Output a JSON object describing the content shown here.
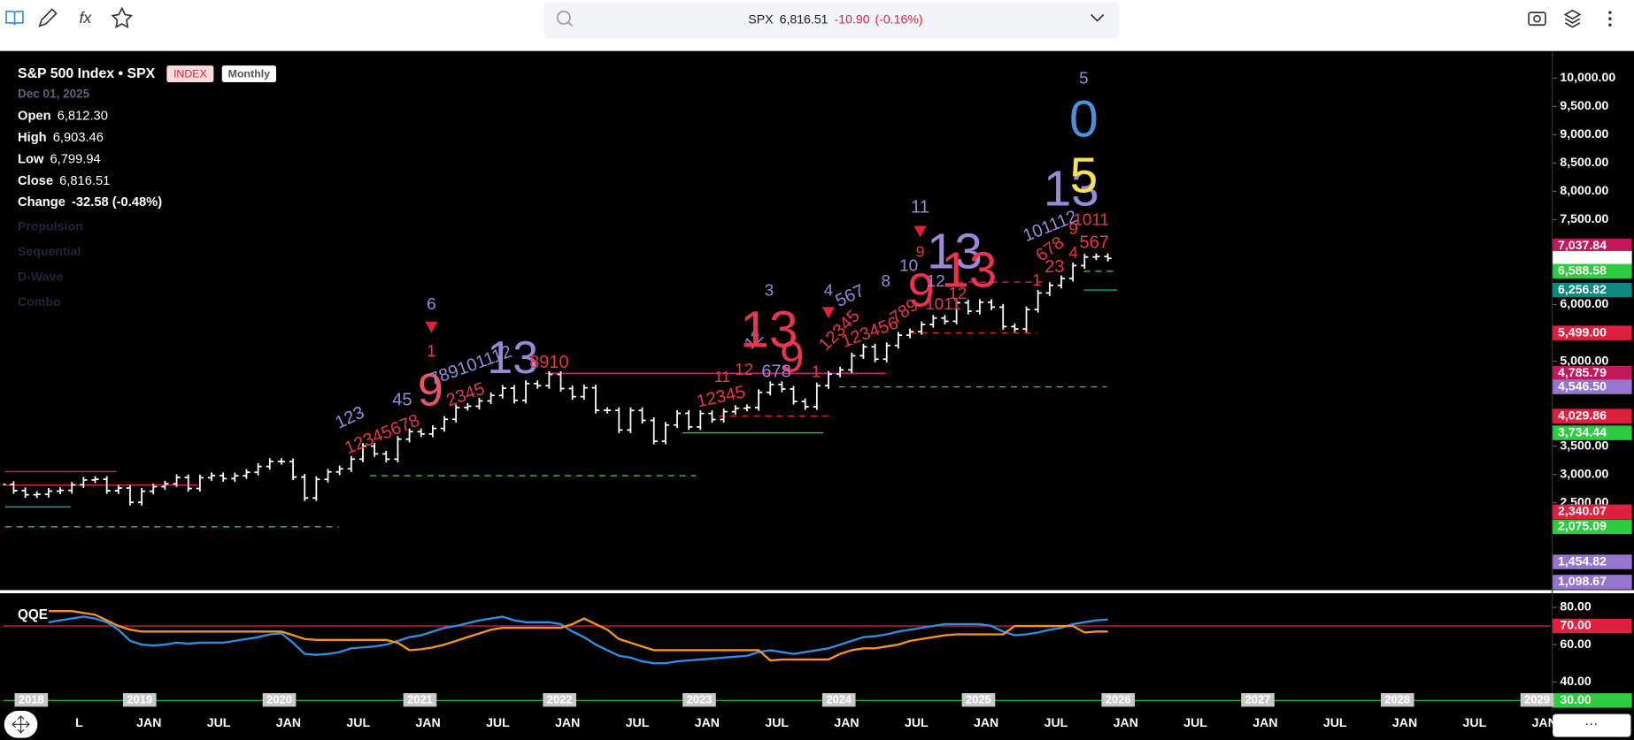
{
  "toolbar": {
    "symbol": "SPX",
    "price": "6,816.51",
    "change": "-10.90",
    "change_pct": "(-0.16%)"
  },
  "legend": {
    "title": "S&P 500 Index • SPX",
    "badges": [
      "INDEX",
      "Monthly"
    ],
    "date": "Dec 01, 2025",
    "rows": [
      [
        "Open",
        "6,812.30"
      ],
      [
        "High",
        "6,903.46"
      ],
      [
        "Low",
        "6,799.94"
      ],
      [
        "Close",
        "6,816.51"
      ],
      [
        "Change",
        "-32.58 (-0.48%)"
      ]
    ],
    "studies": [
      "Propulsion",
      "Sequential",
      "D-Wave",
      "Combo"
    ]
  },
  "time_axis": {
    "month_labels": [
      "L",
      "JAN",
      "JUL",
      "JAN",
      "JUL",
      "JAN",
      "JUL",
      "JAN",
      "JUL",
      "JAN",
      "JUL",
      "JAN",
      "JUL",
      "JAN",
      "JUL",
      "JAN",
      "JUL",
      "JAN",
      "JUL",
      "JAN",
      "JUL",
      "JAN"
    ],
    "year_labels": [
      "2018",
      "2019",
      "2020",
      "2021",
      "2022",
      "2023",
      "2024",
      "2025",
      "2026",
      "2027",
      "2028",
      "2029"
    ]
  },
  "chart_data": [
    {
      "type": "ohlc",
      "series": [
        {
          "color": "#ffffff",
          "values": [
            2824,
            2714,
            2641,
            2648,
            2705,
            2718,
            2816,
            2902,
            2914,
            2712,
            2760,
            2507,
            2704,
            2784,
            2834,
            2946,
            2752,
            2942,
            2980,
            2926,
            2977,
            3038,
            3141,
            3231,
            3226,
            2954,
            2585,
            2912,
            3044,
            3100,
            3271,
            3500,
            3363,
            3270,
            3622,
            3756,
            3714,
            3811,
            3973,
            4181,
            4204,
            4298,
            4395,
            4523,
            4308,
            4605,
            4567,
            4766,
            4516,
            4374,
            4530,
            4132,
            4132,
            3785,
            4130,
            3955,
            3586,
            3872,
            4080,
            3840,
            4077,
            3970,
            4109,
            4169,
            4180,
            4450,
            4589,
            4508,
            4288,
            4194,
            4568,
            4770,
            4846,
            5096,
            5254,
            5036,
            5278,
            5460,
            5522,
            5648,
            5762,
            5705,
            6032,
            5882,
            6041,
            5955,
            5612,
            5569,
            5912,
            6205,
            6339,
            6460,
            6688,
            6840,
            6849,
            6816.51
          ]
        }
      ],
      "ylim": [
        975,
        10460
      ],
      "yticks": [
        {
          "value": 10000,
          "label": "10,000.00"
        },
        {
          "value": 9500,
          "label": "9,500.00"
        },
        {
          "value": 9000,
          "label": "9,000.00"
        },
        {
          "value": 8500,
          "label": "8,500.00"
        },
        {
          "value": 8000,
          "label": "8,000.00"
        },
        {
          "value": 7500,
          "label": "7,500.00"
        },
        {
          "value": 6000,
          "label": "6,000.00"
        },
        {
          "value": 5000,
          "label": "5,000.00"
        },
        {
          "value": 3500,
          "label": "3,500.00"
        },
        {
          "value": 3000,
          "label": "3,000.00"
        },
        {
          "value": 2500,
          "label": "2,500.00"
        }
      ],
      "price_tags": [
        {
          "value": 7037.84,
          "label": "7,037.84",
          "color": "#c2185b"
        },
        {
          "value": 6816.51,
          "color": "#ffffff"
        },
        {
          "value": 6588.58,
          "label": "6,588.58",
          "color": "#2ecc40"
        },
        {
          "value": 6256.82,
          "label": "6,256.82",
          "color": "#0e8a80"
        },
        {
          "value": 5499,
          "label": "5,499.00",
          "color": "#e0203f"
        },
        {
          "value": 4785.79,
          "label": "4,785.79",
          "color": "#c2185b"
        },
        {
          "value": 4546.5,
          "label": "4,546.50",
          "color": "#9575cd"
        },
        {
          "value": 4029.86,
          "label": "4,029.86",
          "color": "#e0203f"
        },
        {
          "value": 3734.44,
          "label": "3,734.44",
          "color": "#2ecc40"
        },
        {
          "value": 2340.07,
          "label": "2,340.07",
          "color": "#e0203f"
        },
        {
          "value": 2075.09,
          "label": "2,075.09",
          "color": "#2ecc40"
        },
        {
          "value": 1454.82,
          "label": "1,454.82",
          "color": "#9575cd"
        },
        {
          "value": 1098.67,
          "label": "1,098.67",
          "color": "#9575cd"
        }
      ],
      "levels": [
        {
          "value": 2075.09,
          "color": "#2ecc40",
          "dashed": true
        },
        {
          "value": 2978,
          "color": "#2ecc40",
          "dashed": true
        },
        {
          "value": 2812,
          "color": "#e0203f",
          "dashed": false
        },
        {
          "value": 3050,
          "color": "#e0203f",
          "dashed": false
        },
        {
          "value": 2426,
          "color": "#12a39a",
          "dashed": false
        },
        {
          "value": 4546.5,
          "color": "#2ecc40",
          "dashed": true
        },
        {
          "value": 4785.79,
          "color": "#d81b7a",
          "dashed": false
        },
        {
          "value": 5499,
          "color": "#e0203f",
          "dashed": true
        },
        {
          "value": 6397,
          "color": "#d81b7a",
          "dashed": true
        },
        {
          "value": 6588.58,
          "color": "#2ecc40",
          "dashed": true
        },
        {
          "value": 6256.82,
          "color": "#12a39a",
          "dashed": false
        },
        {
          "value": 4029.86,
          "color": "#e0203f",
          "dashed": true
        },
        {
          "value": 3734.44,
          "color": "#2ecc40",
          "dashed": false
        }
      ],
      "annotations": [
        {
          "text": "6",
          "color": "#9c88d6"
        },
        {
          "text": "1",
          "color": "#e8344e"
        },
        {
          "text": "9",
          "color": "#f0506a"
        },
        {
          "text": "123",
          "color": "#9c88d6"
        },
        {
          "text": "12345678",
          "color": "#e8344e"
        },
        {
          "text": "45",
          "color": "#9c88d6"
        },
        {
          "text": "789101112",
          "color": "#9c88d6"
        },
        {
          "text": "2345",
          "color": "#e8344e"
        },
        {
          "text": "13",
          "color": "#9c88d6"
        },
        {
          "text": "8910",
          "color": "#e8344e"
        },
        {
          "text": "11",
          "color": "#e8344e"
        },
        {
          "text": "12345",
          "color": "#e8344e"
        },
        {
          "text": "12",
          "color": "#e8344e"
        },
        {
          "text": "12",
          "color": "#9c88d6"
        },
        {
          "text": "3",
          "color": "#9c88d6"
        },
        {
          "text": "13",
          "color": "#e8344e"
        },
        {
          "text": "9",
          "color": "#e8344e"
        },
        {
          "text": "678",
          "color": "#9c88d6"
        },
        {
          "text": "1",
          "color": "#e8344e"
        },
        {
          "text": "4",
          "color": "#9c88d6"
        },
        {
          "text": "567",
          "color": "#9c88d6"
        },
        {
          "text": "12345",
          "color": "#e8344e"
        },
        {
          "text": "123456",
          "color": "#e8344e"
        },
        {
          "text": "789",
          "color": "#e8344e"
        },
        {
          "text": "8",
          "color": "#9c88d6"
        },
        {
          "text": "10",
          "color": "#9c88d6"
        },
        {
          "text": "9",
          "color": "#e8344e"
        },
        {
          "text": "11",
          "color": "#9c88d6"
        },
        {
          "text": "9",
          "color": "#e8344e"
        },
        {
          "text": "1011",
          "color": "#e8344e"
        },
        {
          "text": "13",
          "color": "#9c88d6"
        },
        {
          "text": "12",
          "color": "#9c88d6"
        },
        {
          "text": "12",
          "color": "#e8344e"
        },
        {
          "text": "13",
          "color": "#e8344e"
        },
        {
          "text": "1",
          "color": "#e8344e"
        },
        {
          "text": "23",
          "color": "#e8344e"
        },
        {
          "text": "678",
          "color": "#e8344e"
        },
        {
          "text": "4",
          "color": "#e8344e"
        },
        {
          "text": "567",
          "color": "#e8344e"
        },
        {
          "text": "9",
          "color": "#e8344e"
        },
        {
          "text": "1011",
          "color": "#e8344e"
        },
        {
          "text": "101112",
          "color": "#9c88d6"
        },
        {
          "text": "13",
          "color": "#9c88d6"
        },
        {
          "text": "5",
          "color": "#f5e05a"
        },
        {
          "text": "0",
          "color": "#4a8fe0"
        },
        {
          "text": "5",
          "color": "#9c88d6"
        }
      ]
    },
    {
      "type": "line",
      "title": "QQE",
      "series": [
        {
          "color": "#2f8de4",
          "values": [
            null,
            null,
            null,
            null,
            72,
            73,
            74,
            75,
            74,
            72,
            68,
            62,
            60,
            59.5,
            60,
            61,
            60.5,
            61,
            61,
            61,
            62,
            63,
            64,
            65.5,
            66,
            61,
            55,
            54.5,
            55,
            56,
            58,
            58.5,
            59,
            60,
            62,
            64,
            65,
            67,
            69,
            70,
            71.5,
            73,
            74,
            75,
            73,
            72,
            72,
            72,
            71,
            67,
            64,
            60,
            57,
            54,
            53,
            51,
            50,
            50,
            51,
            51.5,
            52,
            52.5,
            53,
            53.5,
            54,
            56,
            57,
            56,
            55,
            56,
            57,
            58,
            60,
            62,
            64,
            64.5,
            65.5,
            67,
            68,
            69,
            70,
            71,
            71,
            71,
            71,
            70,
            67,
            65,
            65.5,
            66.5,
            68,
            69,
            71,
            72,
            73,
            73.5
          ]
        },
        {
          "color": "#f7931e",
          "values": [
            null,
            null,
            null,
            null,
            78,
            78,
            78,
            77,
            76,
            73,
            70,
            68,
            67,
            67,
            67,
            67,
            67,
            67,
            67,
            67,
            67,
            67,
            67,
            67,
            67,
            65,
            63,
            62.5,
            62.5,
            62.5,
            62.5,
            62.5,
            62.5,
            62.5,
            61,
            57,
            57.5,
            58.5,
            60,
            62,
            64,
            66,
            68,
            69,
            69,
            69,
            69,
            69,
            69,
            71,
            74,
            71,
            68,
            63,
            61,
            59,
            57,
            57,
            57,
            57,
            57,
            57,
            57,
            57,
            57,
            57,
            51.5,
            52,
            52,
            52,
            52,
            52,
            55,
            57,
            58,
            58,
            59,
            60,
            62,
            63,
            64,
            65,
            65.5,
            65.5,
            65.5,
            65.5,
            65.5,
            70,
            70,
            70,
            70,
            70,
            70,
            66.5,
            67,
            67
          ]
        }
      ],
      "ylim": [
        25,
        87
      ],
      "yticks": [
        {
          "value": 80,
          "label": "80.00"
        },
        {
          "value": 60,
          "label": "60.00"
        },
        {
          "value": 40,
          "label": "40.00"
        }
      ],
      "levels": [
        {
          "value": 70,
          "label": "70.00",
          "color": "#e0203f"
        },
        {
          "value": 30,
          "label": "30.00",
          "color": "#2ecc40"
        }
      ]
    }
  ]
}
